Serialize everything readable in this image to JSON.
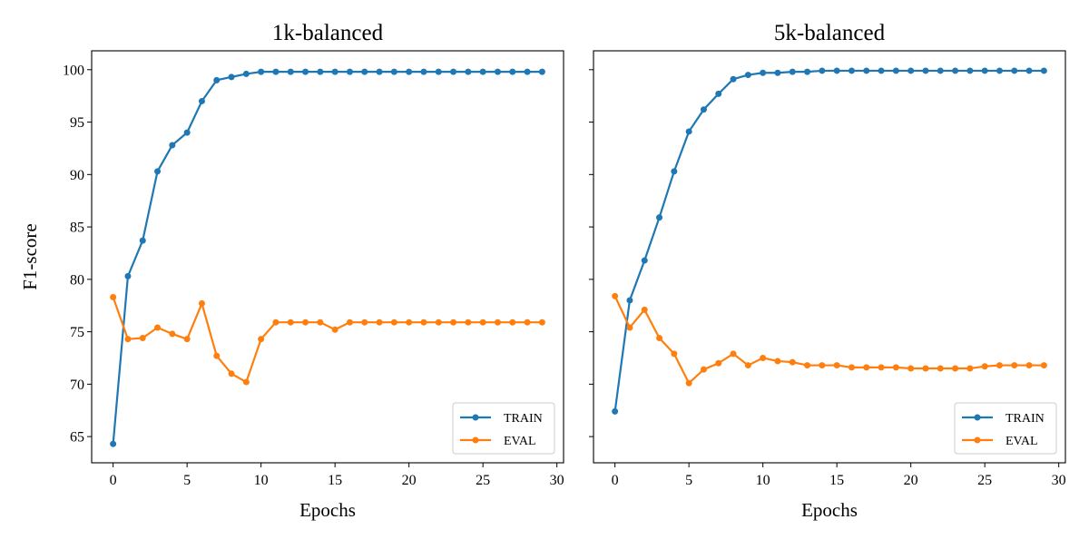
{
  "colors": {
    "train": "#1f77b4",
    "eval": "#ff7f0e"
  },
  "chart_data": [
    {
      "type": "line",
      "title": "1k-balanced",
      "xlabel": "Epochs",
      "ylabel": "F1-score",
      "xlim": [
        -1.45,
        30.45
      ],
      "ylim": [
        62.5,
        101.8
      ],
      "xticks": [
        0,
        5,
        10,
        15,
        20,
        25,
        30
      ],
      "yticks": [
        65,
        70,
        75,
        80,
        85,
        90,
        95,
        100
      ],
      "show_ytick_labels": true,
      "grid": false,
      "legend_position": "lower-right",
      "x": [
        0,
        1,
        2,
        3,
        4,
        5,
        6,
        7,
        8,
        9,
        10,
        11,
        12,
        13,
        14,
        15,
        16,
        17,
        18,
        19,
        20,
        21,
        22,
        23,
        24,
        25,
        26,
        27,
        28,
        29
      ],
      "series": [
        {
          "name": "TRAIN",
          "color_key": "train",
          "values": [
            64.3,
            80.3,
            83.7,
            90.3,
            92.8,
            94.0,
            97.0,
            99.0,
            99.3,
            99.6,
            99.8,
            99.8,
            99.8,
            99.8,
            99.8,
            99.8,
            99.8,
            99.8,
            99.8,
            99.8,
            99.8,
            99.8,
            99.8,
            99.8,
            99.8,
            99.8,
            99.8,
            99.8,
            99.8,
            99.8
          ]
        },
        {
          "name": "EVAL",
          "color_key": "eval",
          "values": [
            78.3,
            74.3,
            74.4,
            75.4,
            74.8,
            74.3,
            77.7,
            72.7,
            71.0,
            70.2,
            74.3,
            75.9,
            75.9,
            75.9,
            75.9,
            75.2,
            75.9,
            75.9,
            75.9,
            75.9,
            75.9,
            75.9,
            75.9,
            75.9,
            75.9,
            75.9,
            75.9,
            75.9,
            75.9,
            75.9
          ]
        }
      ]
    },
    {
      "type": "line",
      "title": "5k-balanced",
      "xlabel": "Epochs",
      "ylabel": "",
      "xlim": [
        -1.45,
        30.45
      ],
      "ylim": [
        62.5,
        101.8
      ],
      "xticks": [
        0,
        5,
        10,
        15,
        20,
        25,
        30
      ],
      "yticks": [
        65,
        70,
        75,
        80,
        85,
        90,
        95,
        100
      ],
      "show_ytick_labels": false,
      "grid": false,
      "legend_position": "lower-right",
      "x": [
        0,
        1,
        2,
        3,
        4,
        5,
        6,
        7,
        8,
        9,
        10,
        11,
        12,
        13,
        14,
        15,
        16,
        17,
        18,
        19,
        20,
        21,
        22,
        23,
        24,
        25,
        26,
        27,
        28,
        29
      ],
      "series": [
        {
          "name": "TRAIN",
          "color_key": "train",
          "values": [
            67.4,
            78.0,
            81.8,
            85.9,
            90.3,
            94.1,
            96.2,
            97.7,
            99.1,
            99.5,
            99.7,
            99.7,
            99.8,
            99.8,
            99.9,
            99.9,
            99.9,
            99.9,
            99.9,
            99.9,
            99.9,
            99.9,
            99.9,
            99.9,
            99.9,
            99.9,
            99.9,
            99.9,
            99.9,
            99.9
          ]
        },
        {
          "name": "EVAL",
          "color_key": "eval",
          "values": [
            78.4,
            75.4,
            77.1,
            74.4,
            72.9,
            70.1,
            71.4,
            72.0,
            72.9,
            71.8,
            72.5,
            72.2,
            72.1,
            71.8,
            71.8,
            71.8,
            71.6,
            71.6,
            71.6,
            71.6,
            71.5,
            71.5,
            71.5,
            71.5,
            71.5,
            71.7,
            71.8,
            71.8,
            71.8,
            71.8
          ]
        }
      ]
    }
  ]
}
